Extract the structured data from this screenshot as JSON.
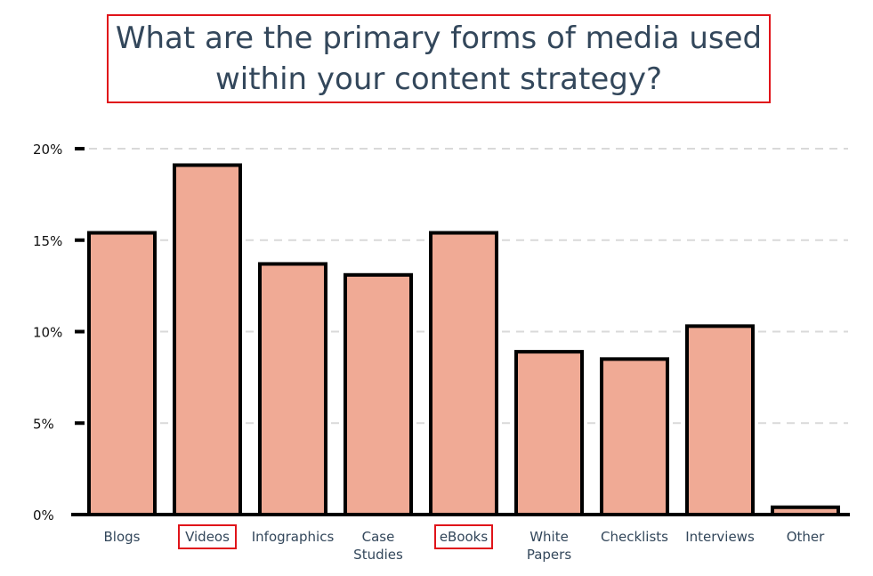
{
  "chart_data": {
    "type": "bar",
    "title": "What are the primary forms of media used\nwithin your content strategy?",
    "categories": [
      "Blogs",
      "Videos",
      "Infographics",
      "Case\nStudies",
      "eBooks",
      "White\nPapers",
      "Checklists",
      "Interviews",
      "Other"
    ],
    "values": [
      15.4,
      19.1,
      13.7,
      13.1,
      15.4,
      8.9,
      8.5,
      10.3,
      0.4
    ],
    "y_ticks": [
      "0%",
      "5%",
      "10%",
      "15%",
      "20%"
    ],
    "ylim": [
      0,
      20
    ],
    "grid": true,
    "highlighted_categories": [
      "Videos",
      "eBooks"
    ],
    "colors": {
      "bar_fill": "#f0aa95",
      "bar_stroke": "#000000",
      "highlight": "#e0141a",
      "title_text": "#33475b",
      "grid": "#d9d9d9"
    }
  }
}
